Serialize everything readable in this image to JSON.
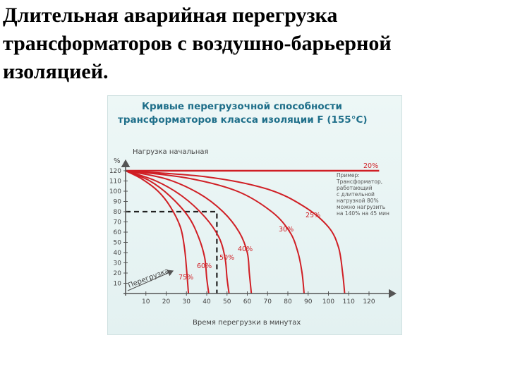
{
  "slide": {
    "title_lines": [
      "Длительная аварийная перегрузка",
      "трансформаторов с воздушно-барьерной",
      "изоляцией."
    ]
  },
  "colors": {
    "curve": "#d01f25",
    "axis": "#555555",
    "chart_title": "#1f6f8a",
    "background": "#e7f3f3"
  },
  "chart_data": {
    "type": "line",
    "title": [
      "Кривые перегрузочной способности",
      "трансформаторов класса изоляции F (155°C)"
    ],
    "xlabel": "Время перегрузки в минутах",
    "ylabel": "%",
    "y_axis_caption": "Нагрузка начальная",
    "diagonal_label": "Перегрузка",
    "xlim": [
      0,
      125
    ],
    "ylim": [
      0,
      130
    ],
    "x_ticks": [
      "10",
      "20",
      "30",
      "40",
      "50",
      "60",
      "70",
      "80",
      "90",
      "100",
      "110",
      "120"
    ],
    "y_ticks": [
      "120",
      "110",
      "100",
      "90",
      "80",
      "70",
      "60",
      "50",
      "40",
      "30",
      "20",
      "10"
    ],
    "series": [
      {
        "name": "75%",
        "points": [
          [
            0,
            120
          ],
          [
            8,
            112
          ],
          [
            16,
            100
          ],
          [
            22,
            85
          ],
          [
            27,
            65
          ],
          [
            29,
            45
          ],
          [
            30,
            25
          ],
          [
            31,
            0
          ]
        ]
      },
      {
        "name": "60%",
        "points": [
          [
            0,
            120
          ],
          [
            12,
            110
          ],
          [
            22,
            95
          ],
          [
            31,
            75
          ],
          [
            36,
            55
          ],
          [
            39,
            35
          ],
          [
            40,
            15
          ],
          [
            41,
            0
          ]
        ]
      },
      {
        "name": "50%",
        "points": [
          [
            0,
            120
          ],
          [
            15,
            110
          ],
          [
            28,
            95
          ],
          [
            39,
            75
          ],
          [
            46,
            55
          ],
          [
            49,
            35
          ],
          [
            50,
            15
          ],
          [
            51,
            0
          ]
        ]
      },
      {
        "name": "40%",
        "points": [
          [
            0,
            120
          ],
          [
            20,
            112
          ],
          [
            36,
            98
          ],
          [
            48,
            80
          ],
          [
            56,
            60
          ],
          [
            60,
            40
          ],
          [
            61,
            20
          ],
          [
            62,
            0
          ]
        ]
      },
      {
        "name": "30%",
        "points": [
          [
            0,
            120
          ],
          [
            30,
            113
          ],
          [
            55,
            100
          ],
          [
            72,
            80
          ],
          [
            81,
            60
          ],
          [
            85,
            40
          ],
          [
            87,
            20
          ],
          [
            88,
            0
          ]
        ]
      },
      {
        "name": "25%",
        "points": [
          [
            0,
            120
          ],
          [
            40,
            114
          ],
          [
            70,
            102
          ],
          [
            88,
            85
          ],
          [
            100,
            65
          ],
          [
            105,
            45
          ],
          [
            107,
            20
          ],
          [
            108,
            0
          ]
        ]
      },
      {
        "name": "20%",
        "points": [
          [
            0,
            120
          ],
          [
            125,
            120
          ]
        ]
      }
    ],
    "curve_labels": [
      "75%",
      "60%",
      "50%",
      "40%",
      "30%",
      "25%",
      "20%"
    ],
    "reference": {
      "x": 45,
      "y": 80
    },
    "example_note": [
      "Пример:",
      "Трансформатор,",
      "работающий",
      "с длительной",
      "нагрузкой 80%",
      "можно нагрузить",
      "на 140% на 45 мин"
    ]
  }
}
